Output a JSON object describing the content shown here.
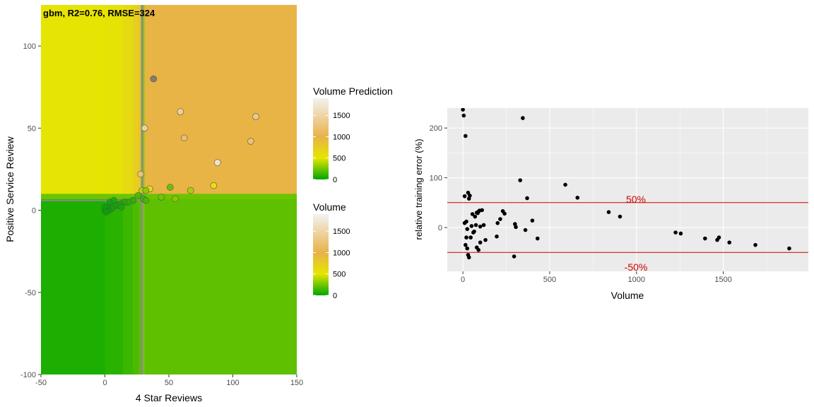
{
  "chart_data": [
    {
      "type": "heatmap",
      "title": "gbm, R2=0.76, RMSE=324",
      "xlabel": "4 Star Reviews",
      "ylabel": "Positive Service Review",
      "xlim": [
        -50,
        150
      ],
      "ylim": [
        -100,
        125
      ],
      "x_ticks": [
        "-50",
        "0",
        "50",
        "100",
        "150"
      ],
      "y_ticks": [
        "-100",
        "-50",
        "0",
        "50",
        "100"
      ],
      "color_scale": {
        "stops": [
          {
            "value": 0,
            "color": "#00a600"
          },
          {
            "value": 500,
            "color": "#e6e600"
          },
          {
            "value": 1000,
            "color": "#e8b249"
          },
          {
            "value": 1900,
            "color": "#f2f2f2"
          }
        ]
      },
      "prediction_regions": [
        {
          "x": [
            -50,
            0
          ],
          "y": [
            10,
            125
          ],
          "value": 520
        },
        {
          "x": [
            0,
            14
          ],
          "y": [
            10,
            125
          ],
          "value": 535
        },
        {
          "x": [
            14,
            22
          ],
          "y": [
            10,
            125
          ],
          "value": 620
        },
        {
          "x": [
            22,
            26
          ],
          "y": [
            10,
            125
          ],
          "value": 720
        },
        {
          "x": [
            26,
            29
          ],
          "y": [
            10,
            125
          ],
          "value": 800
        },
        {
          "x": [
            29,
            31
          ],
          "y": [
            10,
            125
          ],
          "value": 300
        },
        {
          "x": [
            31,
            150
          ],
          "y": [
            10,
            125
          ],
          "value": 980
        },
        {
          "x": [
            -50,
            0
          ],
          "y": [
            -100,
            7
          ],
          "value": 60
        },
        {
          "x": [
            0,
            14
          ],
          "y": [
            -100,
            7
          ],
          "value": 90
        },
        {
          "x": [
            14,
            22
          ],
          "y": [
            -100,
            7
          ],
          "value": 130
        },
        {
          "x": [
            22,
            26
          ],
          "y": [
            -100,
            7
          ],
          "value": 165
        },
        {
          "x": [
            26,
            29
          ],
          "y": [
            -100,
            7
          ],
          "value": 190
        },
        {
          "x": [
            29,
            31
          ],
          "y": [
            -100,
            7
          ],
          "value": 260
        },
        {
          "x": [
            31,
            150
          ],
          "y": [
            -100,
            7
          ],
          "value": 205
        },
        {
          "x": [
            -50,
            150
          ],
          "y": [
            7,
            10
          ],
          "value": 235
        }
      ],
      "grey_lines": {
        "vertical_x": 29,
        "horizontal_y": 6,
        "horizontal_x_range": [
          -50,
          29
        ]
      },
      "points": [
        {
          "x": 38,
          "y": 80,
          "volume": 2400
        },
        {
          "x": 59,
          "y": 60,
          "volume": 1500
        },
        {
          "x": 118,
          "y": 57,
          "volume": 1400
        },
        {
          "x": 31,
          "y": 50,
          "volume": 1550
        },
        {
          "x": 62,
          "y": 44,
          "volume": 1200
        },
        {
          "x": 114,
          "y": 42,
          "volume": 1250
        },
        {
          "x": 88,
          "y": 29,
          "volume": 1800
        },
        {
          "x": 28,
          "y": 22,
          "volume": 1300
        },
        {
          "x": 51,
          "y": 14,
          "volume": 200
        },
        {
          "x": 35,
          "y": 13,
          "volume": 550
        },
        {
          "x": 67,
          "y": 12,
          "volume": 350
        },
        {
          "x": 29,
          "y": 12,
          "volume": 400
        },
        {
          "x": 85,
          "y": 15,
          "volume": 500
        },
        {
          "x": 32,
          "y": 12,
          "volume": 300
        },
        {
          "x": 26,
          "y": 9,
          "volume": 150
        },
        {
          "x": 44,
          "y": 8,
          "volume": 250
        },
        {
          "x": 30,
          "y": 7,
          "volume": 120
        },
        {
          "x": 55,
          "y": 7,
          "volume": 300
        },
        {
          "x": 32,
          "y": 6,
          "volume": 150
        },
        {
          "x": 22,
          "y": 6,
          "volume": 80
        },
        {
          "x": 18,
          "y": 5,
          "volume": 80
        },
        {
          "x": 15,
          "y": 5,
          "volume": 60
        },
        {
          "x": 12,
          "y": 4,
          "volume": 50
        },
        {
          "x": 10,
          "y": 3,
          "volume": 40
        },
        {
          "x": 8,
          "y": 3,
          "volume": 30
        },
        {
          "x": 6,
          "y": 2,
          "volume": 30
        },
        {
          "x": 4,
          "y": 5,
          "volume": 20
        },
        {
          "x": 5,
          "y": 1,
          "volume": 20
        },
        {
          "x": 3,
          "y": 0,
          "volume": 10
        },
        {
          "x": 2,
          "y": 2,
          "volume": 10
        },
        {
          "x": 1,
          "y": 1,
          "volume": 5
        },
        {
          "x": 0,
          "y": 0,
          "volume": 5
        },
        {
          "x": 0,
          "y": 2,
          "volume": 5
        },
        {
          "x": 1,
          "y": -1,
          "volume": 5
        },
        {
          "x": 7,
          "y": 6,
          "volume": 30
        },
        {
          "x": 13,
          "y": 2,
          "volume": 40
        }
      ],
      "legends": [
        {
          "title": "Volume Prediction",
          "ticks": [
            0,
            500,
            1000,
            1500
          ],
          "max": 1900
        },
        {
          "title": "Volume",
          "ticks": [
            0,
            500,
            1000,
            1500
          ],
          "max": 1900
        }
      ]
    },
    {
      "type": "scatter",
      "xlabel": "Volume",
      "ylabel": "relative training error (%)",
      "xlim": [
        -90,
        1990
      ],
      "ylim": [
        -88,
        240
      ],
      "x_ticks": [
        0,
        500,
        1000,
        1500
      ],
      "y_ticks": [
        0,
        100,
        200
      ],
      "reference_lines": [
        {
          "y": 50,
          "label": "50%",
          "color": "#d00000"
        },
        {
          "y": -50,
          "label": "-50%",
          "color": "#d00000"
        }
      ],
      "points": [
        {
          "x": 0,
          "y": 237
        },
        {
          "x": 5,
          "y": 225
        },
        {
          "x": 15,
          "y": 184
        },
        {
          "x": 345,
          "y": 220
        },
        {
          "x": 330,
          "y": 95
        },
        {
          "x": 590,
          "y": 86
        },
        {
          "x": 660,
          "y": 60
        },
        {
          "x": 370,
          "y": 59
        },
        {
          "x": 30,
          "y": 70
        },
        {
          "x": 10,
          "y": 63
        },
        {
          "x": 40,
          "y": 64
        },
        {
          "x": 35,
          "y": 58
        },
        {
          "x": 55,
          "y": 27
        },
        {
          "x": 70,
          "y": 22
        },
        {
          "x": 80,
          "y": 30
        },
        {
          "x": 95,
          "y": 34
        },
        {
          "x": 110,
          "y": 35
        },
        {
          "x": 85,
          "y": 29
        },
        {
          "x": 90,
          "y": 32
        },
        {
          "x": 75,
          "y": 5
        },
        {
          "x": 60,
          "y": -10
        },
        {
          "x": 45,
          "y": -20
        },
        {
          "x": 20,
          "y": -20
        },
        {
          "x": 15,
          "y": -35
        },
        {
          "x": 30,
          "y": -55
        },
        {
          "x": 35,
          "y": -60
        },
        {
          "x": 25,
          "y": -42
        },
        {
          "x": 100,
          "y": 2
        },
        {
          "x": 120,
          "y": 5
        },
        {
          "x": 130,
          "y": -25
        },
        {
          "x": 80,
          "y": -40
        },
        {
          "x": 90,
          "y": -45
        },
        {
          "x": 100,
          "y": -30
        },
        {
          "x": 200,
          "y": 9
        },
        {
          "x": 215,
          "y": 17
        },
        {
          "x": 230,
          "y": 33
        },
        {
          "x": 240,
          "y": 28
        },
        {
          "x": 195,
          "y": -18
        },
        {
          "x": 300,
          "y": 7
        },
        {
          "x": 305,
          "y": 1
        },
        {
          "x": 360,
          "y": -5
        },
        {
          "x": 400,
          "y": 14
        },
        {
          "x": 430,
          "y": -22
        },
        {
          "x": 295,
          "y": -58
        },
        {
          "x": 10,
          "y": 9
        },
        {
          "x": 20,
          "y": 12
        },
        {
          "x": 25,
          "y": -3
        },
        {
          "x": 50,
          "y": 3
        },
        {
          "x": 65,
          "y": -8
        },
        {
          "x": 840,
          "y": 31
        },
        {
          "x": 905,
          "y": 22
        },
        {
          "x": 1225,
          "y": -10
        },
        {
          "x": 1255,
          "y": -12
        },
        {
          "x": 1395,
          "y": -22
        },
        {
          "x": 1465,
          "y": -25
        },
        {
          "x": 1475,
          "y": -20
        },
        {
          "x": 1535,
          "y": -30
        },
        {
          "x": 1685,
          "y": -35
        },
        {
          "x": 1880,
          "y": -42
        }
      ]
    }
  ]
}
